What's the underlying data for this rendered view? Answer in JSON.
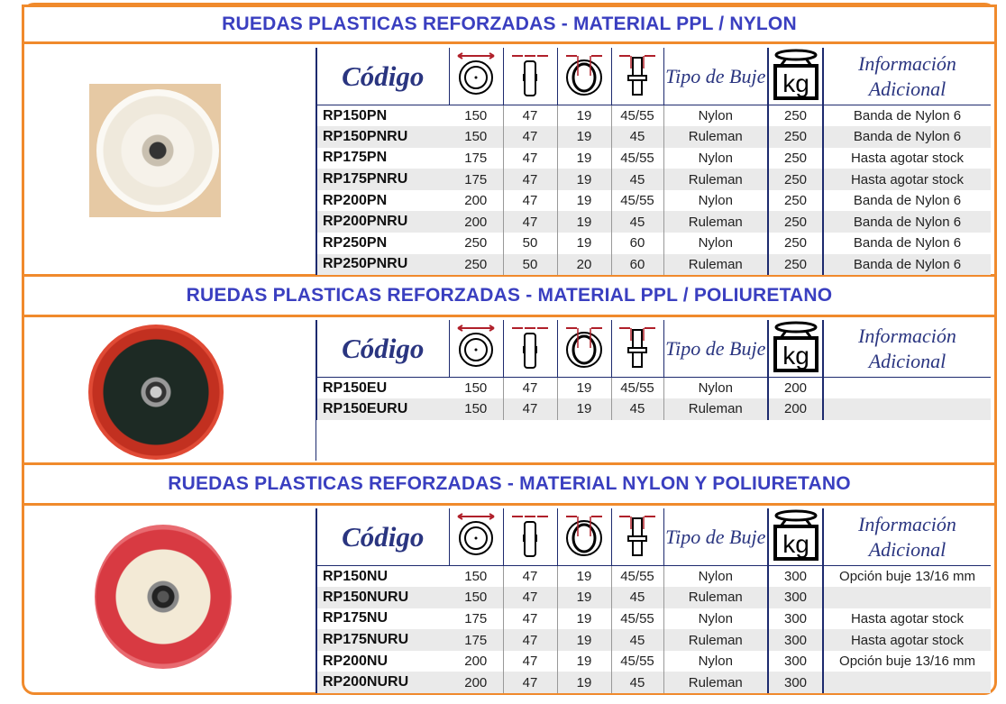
{
  "header_labels": {
    "code": "Código",
    "buje": "Tipo de Buje",
    "info": "Información Adicional",
    "kg": "kg"
  },
  "colors": {
    "border": "#f08a2c",
    "title": "#3a3fc0",
    "header": "#2a3580",
    "icon_arrow": "#b0202a"
  },
  "icons": [
    "diameter-icon",
    "width-icon",
    "hub-icon",
    "axle-icon",
    "weight-kg-icon"
  ],
  "sections": [
    {
      "title": "RUEDAS PLASTICAS REFORZADAS - MATERIAL PPL / NYLON",
      "rows": [
        [
          "RP150PN",
          "150",
          "47",
          "19",
          "45/55",
          "Nylon",
          "250",
          "Banda de Nylon 6"
        ],
        [
          "RP150PNRU",
          "150",
          "47",
          "19",
          "45",
          "Ruleman",
          "250",
          "Banda de Nylon 6"
        ],
        [
          "RP175PN",
          "175",
          "47",
          "19",
          "45/55",
          "Nylon",
          "250",
          "Hasta agotar stock"
        ],
        [
          "RP175PNRU",
          "175",
          "47",
          "19",
          "45",
          "Ruleman",
          "250",
          "Hasta agotar stock"
        ],
        [
          "RP200PN",
          "200",
          "47",
          "19",
          "45/55",
          "Nylon",
          "250",
          "Banda de Nylon 6"
        ],
        [
          "RP200PNRU",
          "200",
          "47",
          "19",
          "45",
          "Ruleman",
          "250",
          "Banda de Nylon 6"
        ],
        [
          "RP250PN",
          "250",
          "50",
          "19",
          "60",
          "Nylon",
          "250",
          "Banda de Nylon 6"
        ],
        [
          "RP250PNRU",
          "250",
          "50",
          "20",
          "60",
          "Ruleman",
          "250",
          "Banda de Nylon 6"
        ]
      ]
    },
    {
      "title": "RUEDAS PLASTICAS REFORZADAS - MATERIAL PPL / POLIURETANO",
      "rows": [
        [
          "RP150EU",
          "150",
          "47",
          "19",
          "45/55",
          "Nylon",
          "200",
          ""
        ],
        [
          "RP150EURU",
          "150",
          "47",
          "19",
          "45",
          "Ruleman",
          "200",
          ""
        ]
      ]
    },
    {
      "title": "RUEDAS PLASTICAS REFORZADAS - MATERIAL NYLON Y POLIURETANO",
      "rows": [
        [
          "RP150NU",
          "150",
          "47",
          "19",
          "45/55",
          "Nylon",
          "300",
          "Opción buje 13/16 mm"
        ],
        [
          "RP150NURU",
          "150",
          "47",
          "19",
          "45",
          "Ruleman",
          "300",
          ""
        ],
        [
          "RP175NU",
          "175",
          "47",
          "19",
          "45/55",
          "Nylon",
          "300",
          "Hasta agotar stock"
        ],
        [
          "RP175NURU",
          "175",
          "47",
          "19",
          "45",
          "Ruleman",
          "300",
          "Hasta agotar stock"
        ],
        [
          "RP200NU",
          "200",
          "47",
          "19",
          "45/55",
          "Nylon",
          "300",
          "Opción buje 13/16 mm"
        ],
        [
          "RP200NURU",
          "200",
          "47",
          "19",
          "45",
          "Ruleman",
          "300",
          ""
        ]
      ]
    }
  ]
}
